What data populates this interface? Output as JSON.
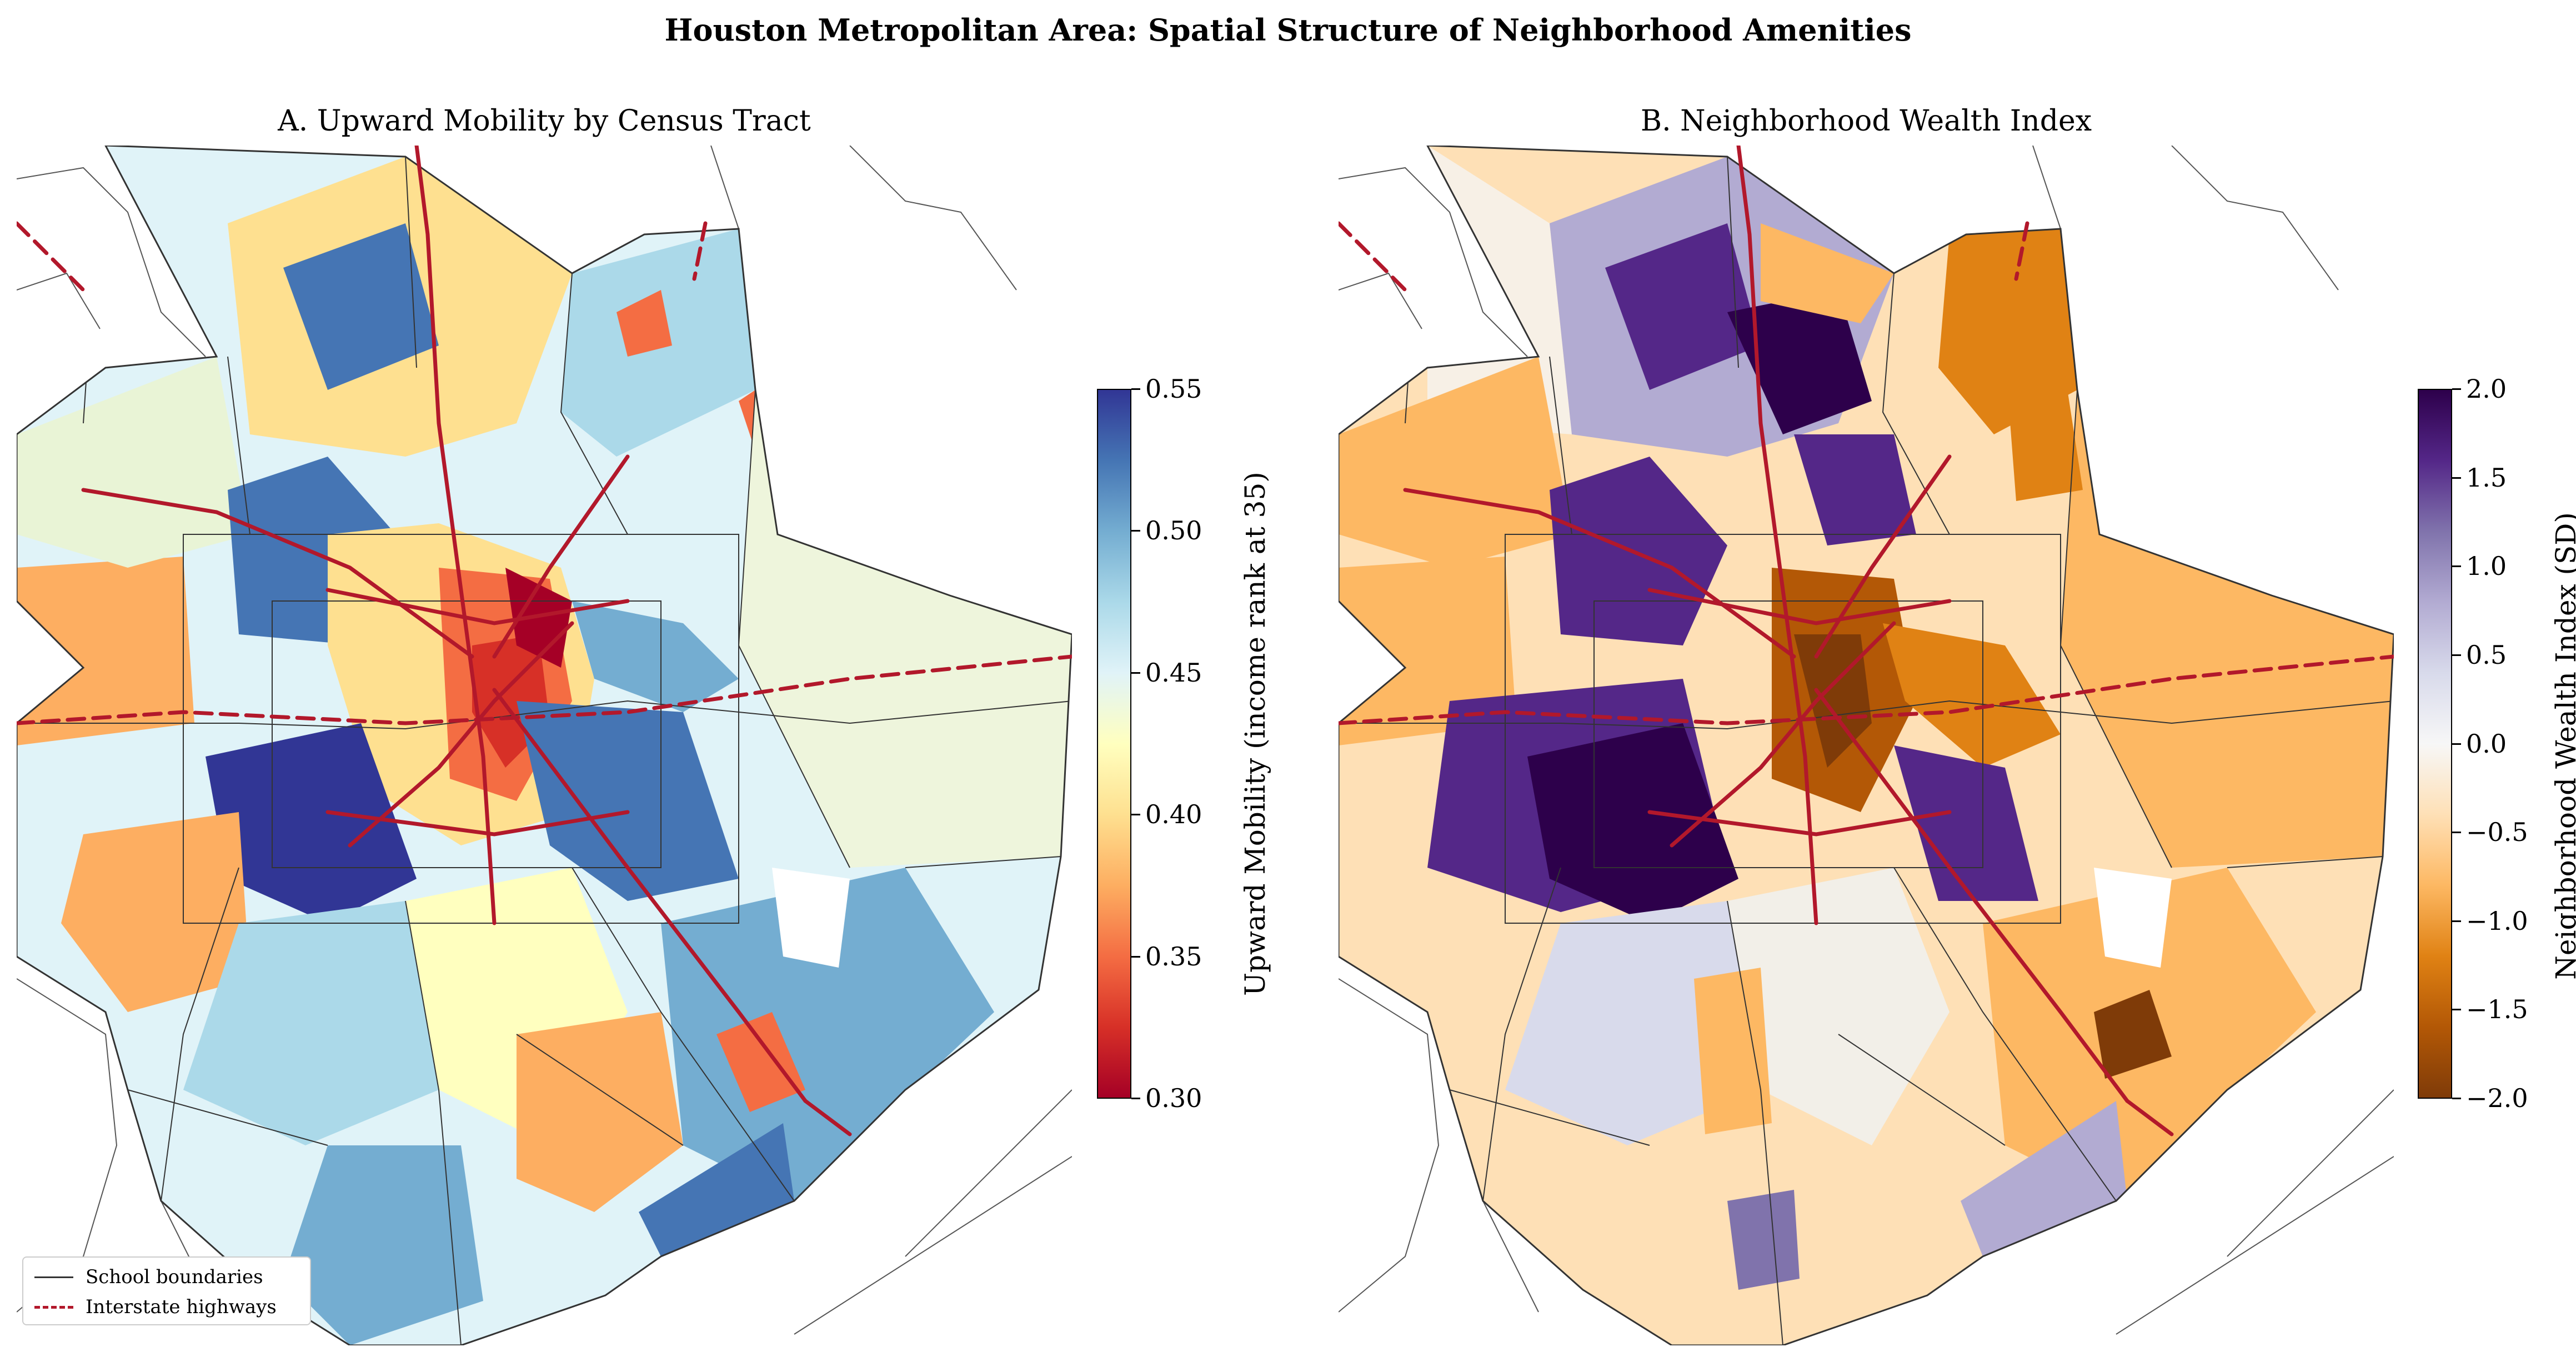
{
  "figure": {
    "suptitle": "Houston Metropolitan Area: Spatial Structure of Neighborhood Amenities"
  },
  "panels": [
    {
      "title": "A. Upward Mobility by Census Tract",
      "colorbar": {
        "label": "Upward Mobility (income rank at 35)",
        "colormap": "RdYlBu",
        "range": [
          0.3,
          0.55
        ],
        "ticks": [
          "0.55",
          "0.50",
          "0.45",
          "0.40",
          "0.35",
          "0.30"
        ]
      }
    },
    {
      "title": "B. Neighborhood Wealth Index",
      "colorbar": {
        "label": "Neighborhood Wealth Index (SD)",
        "colormap": "PuOr",
        "range": [
          -2.0,
          2.0
        ],
        "ticks": [
          "2.0",
          "1.5",
          "1.0",
          "0.5",
          "0.0",
          "−0.5",
          "−1.0",
          "−1.5",
          "−2.0"
        ]
      }
    }
  ],
  "legend": {
    "items": [
      {
        "label": "School boundaries",
        "style": "solid",
        "color": "#333333"
      },
      {
        "label": "Interstate highways",
        "style": "dashed",
        "color": "#b2182b"
      }
    ]
  },
  "colors": {
    "highway": "#b2182b",
    "boundary": "#333333"
  }
}
